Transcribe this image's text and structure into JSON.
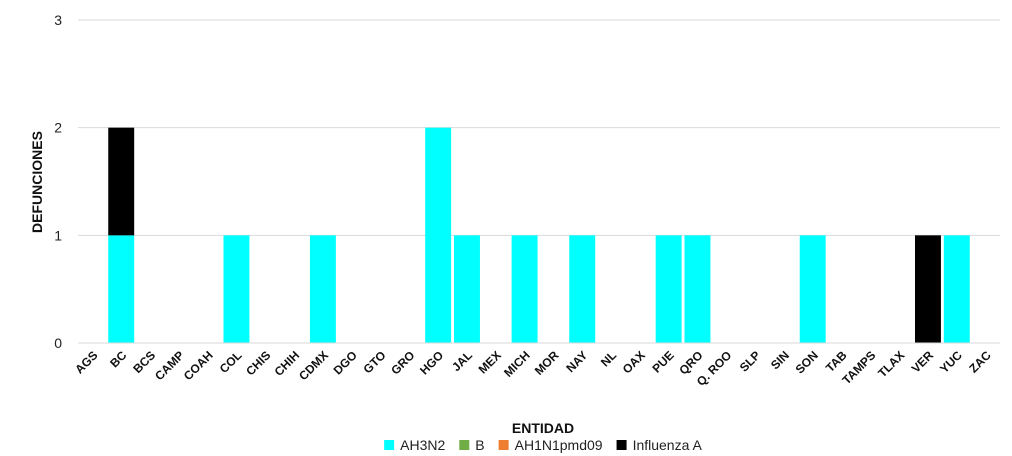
{
  "chart_data": {
    "type": "bar",
    "stacked": true,
    "title": "",
    "xlabel": "ENTIDAD",
    "ylabel": "DEFUNCIONES",
    "ylim": [
      0,
      3
    ],
    "yticks": [
      0,
      1,
      2,
      3
    ],
    "grid": true,
    "legend_position": "bottom",
    "categories": [
      "AGS",
      "BC",
      "BCS",
      "CAMP",
      "COAH",
      "COL",
      "CHIS",
      "CHIH",
      "CDMX",
      "DGO",
      "GTO",
      "GRO",
      "HGO",
      "JAL",
      "MEX",
      "MICH",
      "MOR",
      "NAY",
      "NL",
      "OAX",
      "PUE",
      "QRO",
      "Q. ROO",
      "SLP",
      "SIN",
      "SON",
      "TAB",
      "TAMPS",
      "TLAX",
      "VER",
      "YUC",
      "ZAC"
    ],
    "series": [
      {
        "name": "AH3N2",
        "color": "#00ffff",
        "values": [
          0,
          1,
          0,
          0,
          0,
          1,
          0,
          0,
          1,
          0,
          0,
          0,
          2,
          1,
          0,
          1,
          0,
          1,
          0,
          0,
          1,
          1,
          0,
          0,
          0,
          1,
          0,
          0,
          0,
          0,
          1,
          0
        ]
      },
      {
        "name": "B",
        "color": "#70ad47",
        "values": [
          0,
          0,
          0,
          0,
          0,
          0,
          0,
          0,
          0,
          0,
          0,
          0,
          0,
          0,
          0,
          0,
          0,
          0,
          0,
          0,
          0,
          0,
          0,
          0,
          0,
          0,
          0,
          0,
          0,
          0,
          0,
          0
        ]
      },
      {
        "name": "AH1N1pmd09",
        "color": "#ed7d31",
        "values": [
          0,
          0,
          0,
          0,
          0,
          0,
          0,
          0,
          0,
          0,
          0,
          0,
          0,
          0,
          0,
          0,
          0,
          0,
          0,
          0,
          0,
          0,
          0,
          0,
          0,
          0,
          0,
          0,
          0,
          0,
          0,
          0
        ]
      },
      {
        "name": "Influenza A",
        "color": "#000000",
        "values": [
          0,
          1,
          0,
          0,
          0,
          0,
          0,
          0,
          0,
          0,
          0,
          0,
          0,
          0,
          0,
          0,
          0,
          0,
          0,
          0,
          0,
          0,
          0,
          0,
          0,
          0,
          0,
          0,
          0,
          1,
          0,
          0
        ]
      }
    ]
  }
}
